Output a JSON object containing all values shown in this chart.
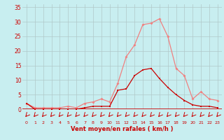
{
  "x": [
    0,
    1,
    2,
    3,
    4,
    5,
    6,
    7,
    8,
    9,
    10,
    11,
    12,
    13,
    14,
    15,
    16,
    17,
    18,
    19,
    20,
    21,
    22,
    23
  ],
  "rafales": [
    2,
    0.5,
    0.5,
    0.5,
    0.5,
    1,
    0.5,
    2,
    2.5,
    3.5,
    2.5,
    9,
    18,
    22,
    29,
    29.5,
    31,
    25,
    14,
    11.5,
    3.5,
    6,
    3.5,
    3
  ],
  "vent_moyen": [
    2,
    0,
    0,
    0,
    0,
    0,
    0,
    0.5,
    1,
    1,
    1,
    6.5,
    7,
    11.5,
    13.5,
    14,
    10.5,
    7.5,
    5,
    3,
    1.5,
    1,
    1,
    0.5
  ],
  "color_rafales": "#f08080",
  "color_vent": "#cc0000",
  "bg_color": "#c8eef0",
  "grid_color": "#b0c8c8",
  "xlabel": "Vent moyen/en rafales ( km/h )",
  "xlabel_color": "#cc0000",
  "tick_color": "#cc0000",
  "ylim": [
    0,
    36
  ],
  "yticks": [
    0,
    5,
    10,
    15,
    20,
    25,
    30,
    35
  ],
  "xlim": [
    -0.5,
    23.5
  ],
  "arrow_color": "#cc0000",
  "axis_line_color": "#cc0000"
}
